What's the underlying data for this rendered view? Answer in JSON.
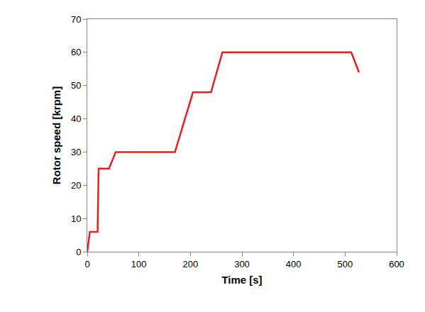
{
  "chart_data": {
    "type": "line",
    "x_label": "Time [s]",
    "y_label": "Rotor speed [krpm]",
    "series": [
      {
        "name": "Rotor speed",
        "color": "#e8201e",
        "x": [
          0,
          5,
          20,
          22,
          42,
          55,
          170,
          205,
          240,
          262,
          512,
          527
        ],
        "values": [
          0,
          6,
          6,
          25,
          25,
          30,
          30,
          48,
          48,
          60,
          60,
          54
        ]
      }
    ],
    "xlim": [
      0,
      600
    ],
    "xticks": [
      0,
      100,
      200,
      300,
      400,
      500,
      600
    ],
    "ylim": [
      0,
      70
    ],
    "yticks": [
      0,
      10,
      20,
      30,
      40,
      50,
      60,
      70
    ],
    "grid": false
  }
}
